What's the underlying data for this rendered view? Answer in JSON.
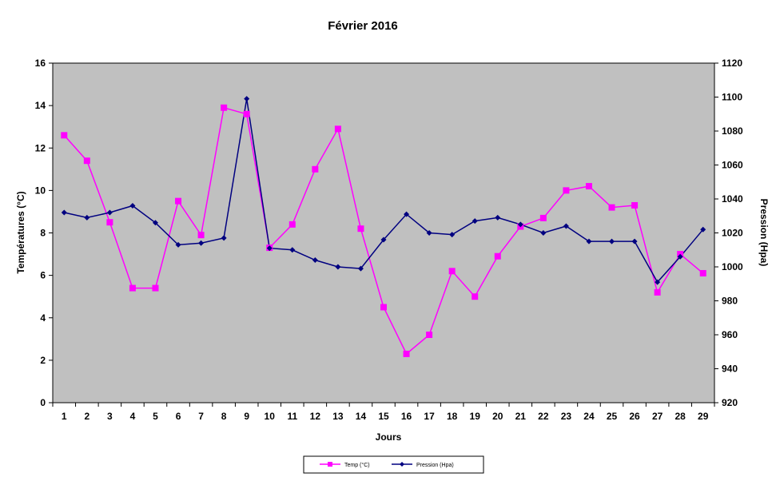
{
  "chart_data": {
    "type": "line",
    "title": "Février 2016",
    "xlabel": "Jours",
    "ylabel": "Températures (°C)",
    "y2label": "Pression (Hpa)",
    "categories": [
      "1",
      "2",
      "3",
      "4",
      "5",
      "6",
      "7",
      "8",
      "9",
      "10",
      "11",
      "12",
      "13",
      "14",
      "15",
      "16",
      "17",
      "18",
      "19",
      "20",
      "21",
      "22",
      "23",
      "24",
      "25",
      "26",
      "27",
      "28",
      "29"
    ],
    "ylim": [
      0,
      16
    ],
    "yticks": [
      "0",
      "2",
      "4",
      "6",
      "8",
      "10",
      "12",
      "14",
      "16"
    ],
    "y2lim": [
      920,
      1120
    ],
    "y2ticks": [
      "920",
      "940",
      "960",
      "980",
      "1000",
      "1020",
      "1040",
      "1060",
      "1080",
      "1100",
      "1120"
    ],
    "grid": false,
    "legend_position": "bottom-center",
    "plot_background": "#c0c0c0",
    "series": [
      {
        "name": "Temp (°C)",
        "axis": "left",
        "color": "#ff00ff",
        "marker": "square",
        "values": [
          12.6,
          11.4,
          8.5,
          5.4,
          5.4,
          9.5,
          7.9,
          13.9,
          13.6,
          7.3,
          8.4,
          11.0,
          12.9,
          8.2,
          4.5,
          2.3,
          3.2,
          6.2,
          5.0,
          6.9,
          8.3,
          8.7,
          10.0,
          10.2,
          9.2,
          9.3,
          5.2,
          7.0,
          6.1
        ]
      },
      {
        "name": "Pression (Hpa)",
        "axis": "right",
        "color": "#000080",
        "marker": "diamond",
        "values": [
          1032,
          1029,
          1032,
          1036,
          1026,
          1013,
          1014,
          1017,
          1099,
          1011,
          1010,
          1004,
          1000,
          999,
          1016,
          1031,
          1020,
          1019,
          1027,
          1029,
          1025,
          1020,
          1024,
          1015,
          1015,
          1015,
          991,
          1006,
          1022
        ]
      }
    ]
  }
}
